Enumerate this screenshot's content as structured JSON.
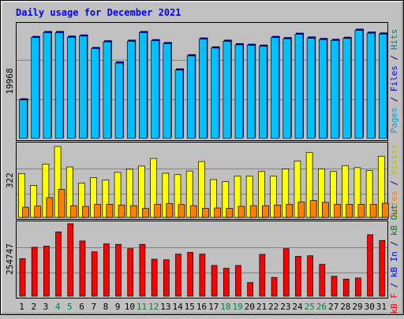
{
  "chart_data": [
    {
      "type": "bar",
      "title": "Daily usage for December 2021",
      "ytick_label": "19968",
      "right_label_parts": [
        {
          "text": "Pages",
          "color": "#00a0e0"
        },
        {
          "text": " / ",
          "color": "#000080"
        },
        {
          "text": "Files",
          "color": "#0000ff"
        },
        {
          "text": " / ",
          "color": "#000080"
        },
        {
          "text": "Hits",
          "color": "#008080"
        }
      ],
      "categories": [
        "1",
        "2",
        "3",
        "4",
        "5",
        "6",
        "7",
        "8",
        "9",
        "10",
        "11",
        "12",
        "13",
        "14",
        "15",
        "16",
        "17",
        "18",
        "19",
        "20",
        "21",
        "22",
        "23",
        "24",
        "25",
        "26",
        "27",
        "28",
        "29",
        "30",
        "31"
      ],
      "weekend_days": [
        "4",
        "5",
        "11",
        "12",
        "18",
        "19",
        "25",
        "26"
      ],
      "ylim": [
        0,
        19968
      ],
      "series": [
        {
          "name": "Hits",
          "color": "#00c0ff",
          "values": [
            6750,
            17500,
            18350,
            18350,
            17550,
            17750,
            15600,
            16750,
            13100,
            16850,
            18350,
            16950,
            16450,
            11900,
            14350,
            17230,
            15700,
            16850,
            16250,
            16150,
            16000,
            17500,
            17300,
            18050,
            17400,
            17150,
            17000,
            17350,
            18750,
            18250,
            18100
          ]
        },
        {
          "name": "Files",
          "color": "#0080ff",
          "values": [
            6750,
            17500,
            18350,
            18350,
            17550,
            17750,
            15600,
            16750,
            13100,
            16850,
            18350,
            16950,
            16450,
            11900,
            14350,
            17230,
            15700,
            16850,
            16250,
            16150,
            16000,
            17500,
            17300,
            18050,
            17400,
            17150,
            17000,
            17350,
            18750,
            18250,
            18100
          ]
        }
      ]
    },
    {
      "type": "bar",
      "ytick_label": "322",
      "right_label_parts": [
        {
          "text": "Sites",
          "color": "#ff8000"
        },
        {
          "text": " / ",
          "color": "#000080"
        },
        {
          "text": "Visits",
          "color": "#c0c000"
        }
      ],
      "categories": [
        "1",
        "2",
        "3",
        "4",
        "5",
        "6",
        "7",
        "8",
        "9",
        "10",
        "11",
        "12",
        "13",
        "14",
        "15",
        "16",
        "17",
        "18",
        "19",
        "20",
        "21",
        "22",
        "23",
        "24",
        "25",
        "26",
        "27",
        "28",
        "29",
        "30",
        "31"
      ],
      "ylim": [
        0,
        322
      ],
      "series": [
        {
          "name": "Visits",
          "color": "#ffff00",
          "values": [
            195,
            142,
            237,
            315,
            224,
            153,
            177,
            166,
            200,
            214,
            228,
            262,
            196,
            190,
            206,
            248,
            168,
            159,
            183,
            183,
            204,
            183,
            215,
            250,
            288,
            215,
            204,
            230,
            221,
            208,
            272
          ]
        },
        {
          "name": "Sites",
          "color": "#ff8000",
          "values": [
            45,
            50,
            88,
            125,
            52,
            49,
            58,
            58,
            55,
            52,
            40,
            58,
            62,
            57,
            52,
            40,
            42,
            40,
            49,
            52,
            52,
            55,
            58,
            68,
            75,
            67,
            58,
            58,
            58,
            58,
            63
          ]
        }
      ]
    },
    {
      "type": "bar",
      "ytick_label": "254747",
      "right_label_parts": [
        {
          "text": "kB F",
          "color": "#ff0000"
        },
        {
          "text": " / ",
          "color": "#000080"
        },
        {
          "text": "kB In",
          "color": "#0000ff"
        },
        {
          "text": " / ",
          "color": "#000080"
        },
        {
          "text": "kB Out",
          "color": "#008000"
        }
      ],
      "categories": [
        "1",
        "2",
        "3",
        "4",
        "5",
        "6",
        "7",
        "8",
        "9",
        "10",
        "11",
        "12",
        "13",
        "14",
        "15",
        "16",
        "17",
        "18",
        "19",
        "20",
        "21",
        "22",
        "23",
        "24",
        "25",
        "26",
        "27",
        "28",
        "29",
        "30",
        "31"
      ],
      "ylim": [
        0,
        254747
      ],
      "series": [
        {
          "name": "kB F",
          "color": "#ff0000",
          "values": [
            132000,
            172000,
            176000,
            226000,
            254747,
            194000,
            156000,
            184000,
            182000,
            167000,
            182000,
            130000,
            128000,
            148000,
            154000,
            148000,
            108000,
            98000,
            108000,
            48000,
            147000,
            66000,
            167000,
            140000,
            142000,
            112000,
            70000,
            60000,
            64000,
            216000,
            196000
          ]
        }
      ]
    }
  ]
}
